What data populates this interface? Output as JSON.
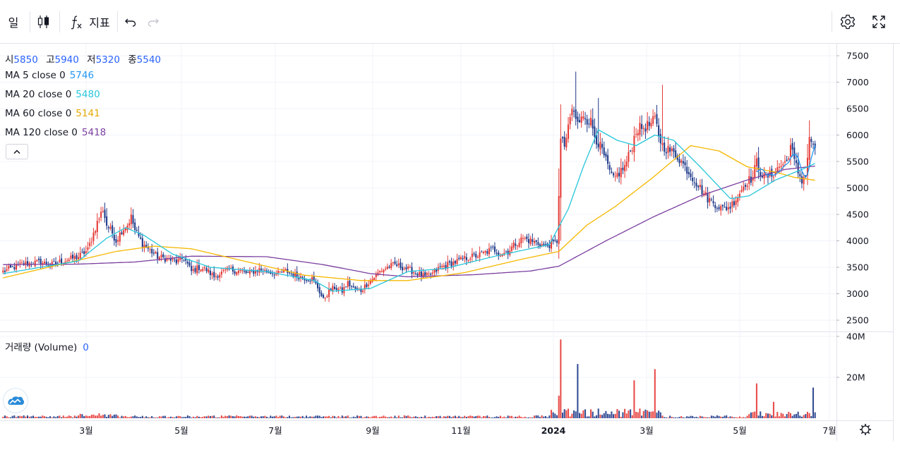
{
  "toolbar": {
    "interval_label": "일",
    "indicators_label": "지표"
  },
  "legend": {
    "ohlc": [
      {
        "key": "시",
        "val": "5850"
      },
      {
        "key": "고",
        "val": "5940"
      },
      {
        "key": "저",
        "val": "5320"
      },
      {
        "key": "종",
        "val": "5540"
      }
    ],
    "ma": [
      {
        "label": "MA 5 close 0",
        "value": "5746",
        "color": "#2196f3"
      },
      {
        "label": "MA 20 close 0",
        "value": "5480",
        "color": "#26c6da"
      },
      {
        "label": "MA 60 close 0",
        "value": "5141",
        "color": "#f5b800"
      },
      {
        "label": "MA 120 close 0",
        "value": "5418",
        "color": "#7b3fa0"
      }
    ],
    "volume_label": "거래량 (Volume)",
    "volume_value": "0"
  },
  "colors": {
    "up": "#e53935",
    "down": "#1e3a8a",
    "ma20": "#26c6da",
    "ma60": "#f5b800",
    "ma120": "#7b3fa0",
    "grid": "#f0f3fa"
  },
  "chart_data": {
    "type": "candlestick",
    "price_axis": {
      "ticks": [
        "7500",
        "7000",
        "6500",
        "6000",
        "5500",
        "5000",
        "4500",
        "4000",
        "3500",
        "3000",
        "2500"
      ],
      "range": [
        2250,
        7650
      ]
    },
    "volume_axis": {
      "ticks": [
        "40M",
        "20M"
      ],
      "range": [
        0,
        40000000
      ]
    },
    "time_axis": {
      "labels": [
        "3월",
        "5월",
        "7월",
        "9월",
        "11월",
        "2024",
        "3월",
        "5월",
        "7월"
      ],
      "bold": [
        "2024"
      ]
    },
    "close_path": [
      [
        0,
        3420
      ],
      [
        10,
        3560
      ],
      [
        20,
        3600
      ],
      [
        25,
        3540
      ],
      [
        30,
        3600
      ],
      [
        36,
        3660
      ],
      [
        40,
        3700
      ],
      [
        45,
        3830
      ],
      [
        50,
        4350
      ],
      [
        53,
        4600
      ],
      [
        55,
        4300
      ],
      [
        58,
        4150
      ],
      [
        60,
        4000
      ],
      [
        63,
        4200
      ],
      [
        66,
        4300
      ],
      [
        68,
        4450
      ],
      [
        70,
        4200
      ],
      [
        74,
        3950
      ],
      [
        78,
        3820
      ],
      [
        82,
        3700
      ],
      [
        88,
        3650
      ],
      [
        92,
        3600
      ],
      [
        96,
        3680
      ],
      [
        100,
        3420
      ],
      [
        104,
        3500
      ],
      [
        108,
        3450
      ],
      [
        112,
        3320
      ],
      [
        115,
        3380
      ],
      [
        120,
        3450
      ],
      [
        126,
        3430
      ],
      [
        130,
        3380
      ],
      [
        136,
        3460
      ],
      [
        140,
        3420
      ],
      [
        146,
        3380
      ],
      [
        150,
        3430
      ],
      [
        155,
        3350
      ],
      [
        160,
        3300
      ],
      [
        164,
        3280
      ],
      [
        167,
        3120
      ],
      [
        170,
        2880
      ],
      [
        173,
        3050
      ],
      [
        176,
        3120
      ],
      [
        180,
        3050
      ],
      [
        183,
        3200
      ],
      [
        186,
        3100
      ],
      [
        190,
        3060
      ],
      [
        193,
        3180
      ],
      [
        196,
        3280
      ],
      [
        200,
        3420
      ],
      [
        204,
        3500
      ],
      [
        208,
        3550
      ],
      [
        212,
        3500
      ],
      [
        216,
        3450
      ],
      [
        220,
        3380
      ],
      [
        224,
        3320
      ],
      [
        228,
        3380
      ],
      [
        232,
        3500
      ],
      [
        236,
        3550
      ],
      [
        240,
        3600
      ],
      [
        244,
        3650
      ],
      [
        248,
        3700
      ],
      [
        252,
        3720
      ],
      [
        256,
        3780
      ],
      [
        260,
        3850
      ],
      [
        264,
        3750
      ],
      [
        268,
        3800
      ],
      [
        272,
        3950
      ],
      [
        276,
        4050
      ],
      [
        280,
        4000
      ],
      [
        284,
        3950
      ],
      [
        288,
        3900
      ],
      [
        292,
        3950
      ],
      [
        294,
        4000
      ],
      [
        295,
        4900
      ],
      [
        296,
        5900
      ],
      [
        298,
        5800
      ],
      [
        300,
        6100
      ],
      [
        302,
        6500
      ],
      [
        304,
        6300
      ],
      [
        306,
        6200
      ],
      [
        308,
        6400
      ],
      [
        310,
        6300
      ],
      [
        312,
        6250
      ],
      [
        314,
        6000
      ],
      [
        318,
        5700
      ],
      [
        322,
        5300
      ],
      [
        324,
        5150
      ],
      [
        326,
        5250
      ],
      [
        330,
        5400
      ],
      [
        334,
        5800
      ],
      [
        336,
        6100
      ],
      [
        340,
        6150
      ],
      [
        344,
        6200
      ],
      [
        346,
        6300
      ],
      [
        348,
        6000
      ],
      [
        350,
        5800
      ],
      [
        354,
        5700
      ],
      [
        358,
        5600
      ],
      [
        362,
        5400
      ],
      [
        366,
        5200
      ],
      [
        370,
        5000
      ],
      [
        374,
        4800
      ],
      [
        378,
        4700
      ],
      [
        382,
        4600
      ],
      [
        386,
        4650
      ],
      [
        390,
        4850
      ],
      [
        394,
        5100
      ],
      [
        398,
        5200
      ],
      [
        400,
        5500
      ],
      [
        402,
        5300
      ],
      [
        404,
        5200
      ],
      [
        408,
        5250
      ],
      [
        412,
        5400
      ],
      [
        416,
        5500
      ],
      [
        418,
        5800
      ],
      [
        420,
        5500
      ],
      [
        422,
        5300
      ],
      [
        424,
        5150
      ],
      [
        426,
        5250
      ],
      [
        428,
        5900
      ],
      [
        430,
        5850
      ],
      [
        432,
        5540
      ]
    ],
    "ma20_path": [
      [
        0,
        3380
      ],
      [
        40,
        3620
      ],
      [
        55,
        4050
      ],
      [
        65,
        4250
      ],
      [
        75,
        4100
      ],
      [
        90,
        3750
      ],
      [
        110,
        3500
      ],
      [
        140,
        3420
      ],
      [
        165,
        3250
      ],
      [
        175,
        3050
      ],
      [
        195,
        3100
      ],
      [
        215,
        3420
      ],
      [
        235,
        3480
      ],
      [
        260,
        3700
      ],
      [
        290,
        3930
      ],
      [
        300,
        4600
      ],
      [
        308,
        5400
      ],
      [
        316,
        6100
      ],
      [
        326,
        5900
      ],
      [
        336,
        5800
      ],
      [
        346,
        6000
      ],
      [
        356,
        5900
      ],
      [
        370,
        5400
      ],
      [
        386,
        4800
      ],
      [
        396,
        4850
      ],
      [
        410,
        5150
      ],
      [
        424,
        5350
      ],
      [
        432,
        5480
      ]
    ],
    "ma60_path": [
      [
        0,
        3300
      ],
      [
        30,
        3550
      ],
      [
        60,
        3800
      ],
      [
        80,
        3900
      ],
      [
        100,
        3850
      ],
      [
        130,
        3600
      ],
      [
        160,
        3350
      ],
      [
        190,
        3250
      ],
      [
        215,
        3250
      ],
      [
        245,
        3400
      ],
      [
        275,
        3650
      ],
      [
        295,
        3800
      ],
      [
        310,
        4300
      ],
      [
        325,
        4650
      ],
      [
        345,
        5200
      ],
      [
        365,
        5800
      ],
      [
        380,
        5700
      ],
      [
        395,
        5400
      ],
      [
        410,
        5300
      ],
      [
        420,
        5200
      ],
      [
        432,
        5141
      ]
    ],
    "ma120_path": [
      [
        0,
        3550
      ],
      [
        40,
        3560
      ],
      [
        70,
        3600
      ],
      [
        100,
        3710
      ],
      [
        140,
        3700
      ],
      [
        170,
        3550
      ],
      [
        195,
        3380
      ],
      [
        215,
        3320
      ],
      [
        250,
        3360
      ],
      [
        280,
        3430
      ],
      [
        295,
        3520
      ],
      [
        320,
        4000
      ],
      [
        345,
        4450
      ],
      [
        370,
        4850
      ],
      [
        395,
        5150
      ],
      [
        415,
        5350
      ],
      [
        432,
        5418
      ]
    ],
    "volume_spikes": [
      [
        295,
        11000000
      ],
      [
        296,
        38500000
      ],
      [
        305,
        26500000
      ],
      [
        335,
        18500000
      ],
      [
        346,
        24000000
      ],
      [
        400,
        17000000
      ],
      [
        409,
        8000000
      ],
      [
        430,
        15000000
      ]
    ],
    "high_spikes": [
      [
        304,
        7200
      ],
      [
        350,
        6950
      ],
      [
        316,
        6700
      ]
    ]
  }
}
